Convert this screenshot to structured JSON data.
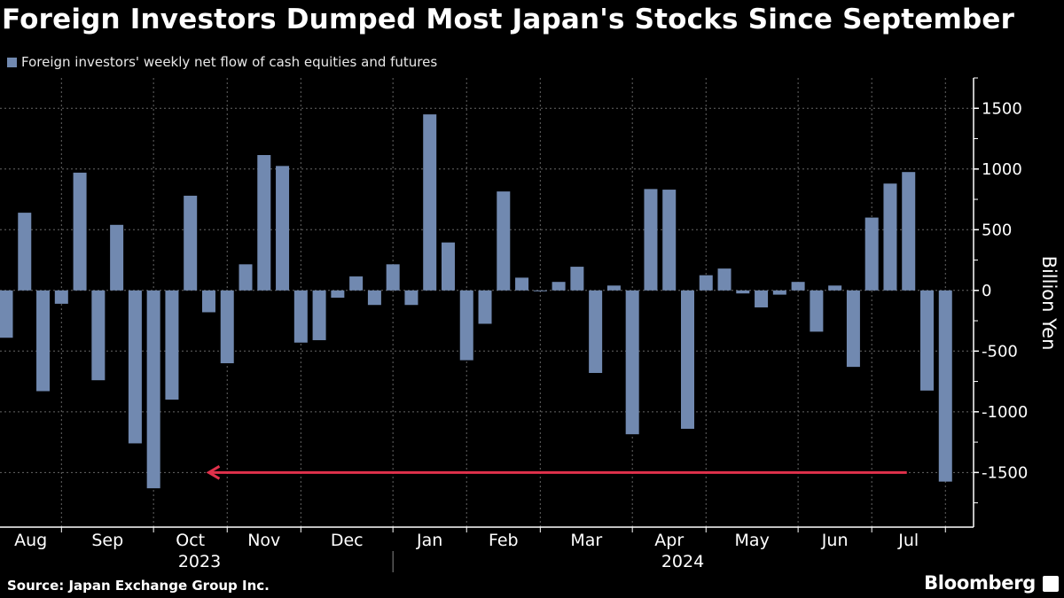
{
  "chart_data": {
    "type": "bar",
    "title": "Foreign Investors Dumped Most Japan's Stocks Since September",
    "legend": [
      "Foreign investors' weekly net flow of cash equities and futures"
    ],
    "ylabel": "Billion Yen",
    "ylim": [
      -1950,
      1750
    ],
    "yticks": [
      1500,
      1000,
      500,
      0,
      -500,
      -1000,
      -1500
    ],
    "ytick_labels": [
      "1500",
      "1000",
      "500",
      "0",
      "-500",
      "-1000",
      "-1500"
    ],
    "month_labels": [
      "Aug",
      "Sep",
      "Oct",
      "Nov",
      "Dec",
      "Jan",
      "Feb",
      "Mar",
      "Apr",
      "May",
      "Jun",
      "Jul"
    ],
    "year_labels": [
      "2023",
      "2024"
    ],
    "grid": true,
    "legend_position": "top-left",
    "y_axis_side": "right",
    "colors": {
      "bar": "#7189b0",
      "arrow": "#e0314b",
      "background": "#000000",
      "text": "#ffffff"
    },
    "x": [
      "2023-08-11",
      "2023-08-18",
      "2023-08-25",
      "2023-09-01",
      "2023-09-08",
      "2023-09-15",
      "2023-09-22",
      "2023-09-29",
      "2023-10-06",
      "2023-10-13",
      "2023-10-20",
      "2023-10-27",
      "2023-11-03",
      "2023-11-10",
      "2023-11-17",
      "2023-11-24",
      "2023-12-01",
      "2023-12-08",
      "2023-12-15",
      "2023-12-22",
      "2023-12-29",
      "2024-01-05",
      "2024-01-12",
      "2024-01-19",
      "2024-01-26",
      "2024-02-02",
      "2024-02-09",
      "2024-02-16",
      "2024-02-23",
      "2024-03-01",
      "2024-03-08",
      "2024-03-15",
      "2024-03-22",
      "2024-03-29",
      "2024-04-05",
      "2024-04-12",
      "2024-04-19",
      "2024-04-26",
      "2024-05-03",
      "2024-05-10",
      "2024-05-17",
      "2024-05-24",
      "2024-05-31",
      "2024-06-07",
      "2024-06-14",
      "2024-06-21",
      "2024-06-28",
      "2024-07-05",
      "2024-07-12",
      "2024-07-19",
      "2024-07-26",
      "2024-08-02"
    ],
    "values": [
      -390,
      640,
      -830,
      -110,
      970,
      -740,
      540,
      -1260,
      -1630,
      -900,
      780,
      -180,
      -600,
      215,
      1115,
      1025,
      -430,
      -410,
      -60,
      115,
      -120,
      215,
      -120,
      1450,
      395,
      -575,
      -275,
      815,
      105,
      -5,
      70,
      195,
      -680,
      40,
      -1185,
      835,
      830,
      -1140,
      125,
      180,
      -25,
      -140,
      -35,
      70,
      -340,
      40,
      -630,
      600,
      880,
      975,
      -825,
      -1575
    ],
    "annotations": [
      {
        "type": "arrow",
        "y": -1500,
        "from": "2024-07-19",
        "to": "2023-10-27",
        "direction": "left"
      }
    ]
  },
  "footer": {
    "source": "Source: Japan Exchange Group Inc.",
    "brand": "Bloomberg"
  }
}
